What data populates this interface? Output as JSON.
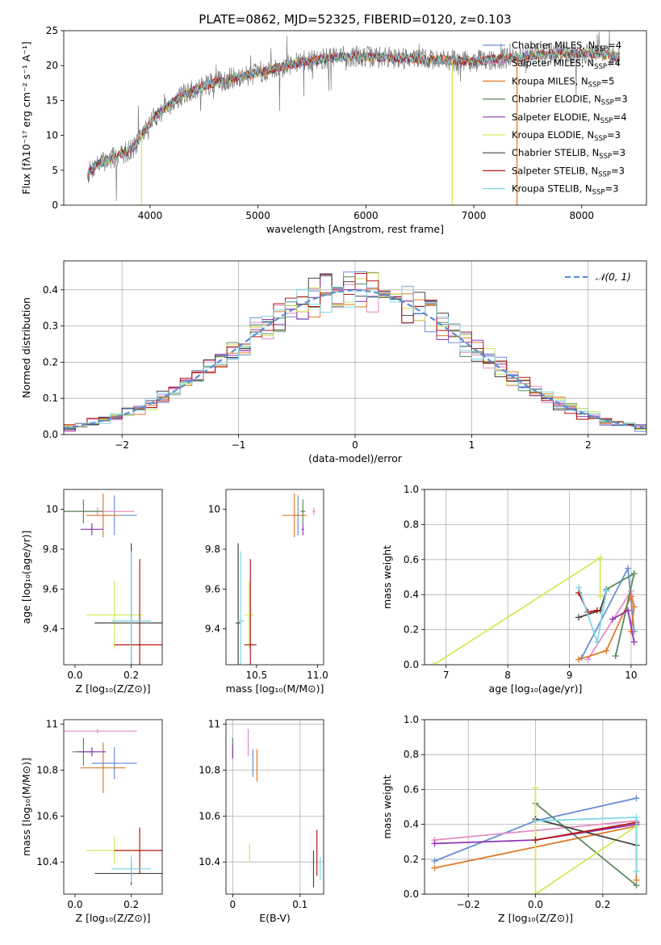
{
  "figure": {
    "title": "PLATE=0862, MJD=52325, FIBERID=0120, z=0.103",
    "colors": {
      "chabrier_miles": "#6a8fd6",
      "salpeter_miles": "#e38bc6",
      "kroupa_miles": "#e07b28",
      "chabrier_elodie": "#5a8a5e",
      "salpeter_elodie": "#8e35b3",
      "kroupa_elodie": "#d4e85a",
      "chabrier_stelib": "#444444",
      "salpeter_stelib": "#b51818",
      "kroupa_stelib": "#7fd6e6",
      "normal": "#5b8ed6",
      "grid": "#b0b0b0"
    }
  },
  "chart_data": [
    {
      "id": "spectrum",
      "type": "line",
      "xlabel": "wavelength [Angstrom, rest frame]",
      "ylabel": "Flux [fλ10⁻¹⁷ erg cm⁻² s⁻¹ A⁻¹]",
      "xlim": [
        3200,
        8600
      ],
      "ylim": [
        0,
        25
      ],
      "xticks": [
        4000,
        5000,
        6000,
        7000,
        8000
      ],
      "yticks": [
        0,
        5,
        10,
        15,
        20,
        25
      ],
      "grid": false,
      "legend_position": "top-right",
      "legend": [
        {
          "label": "Chabrier MILES, N",
          "sub": "SSP",
          "value": "=4",
          "color": "chabrier_miles"
        },
        {
          "label": "Salpeter MILES, N",
          "sub": "SSP",
          "value": "=4",
          "color": "salpeter_miles"
        },
        {
          "label": "Kroupa MILES, N",
          "sub": "SSP",
          "value": "=5",
          "color": "kroupa_miles"
        },
        {
          "label": "Chabrier ELODIE, N",
          "sub": "SSP",
          "value": "=3",
          "color": "chabrier_elodie"
        },
        {
          "label": "Salpeter ELODIE, N",
          "sub": "SSP",
          "value": "=4",
          "color": "salpeter_elodie"
        },
        {
          "label": "Kroupa ELODIE, N",
          "sub": "SSP",
          "value": "=3",
          "color": "kroupa_elodie"
        },
        {
          "label": "Chabrier STELIB, N",
          "sub": "SSP",
          "value": "=3",
          "color": "chabrier_stelib"
        },
        {
          "label": "Salpeter STELIB, N",
          "sub": "SSP",
          "value": "=3",
          "color": "salpeter_stelib"
        },
        {
          "label": "Kroupa STELIB, N",
          "sub": "SSP",
          "value": "=3",
          "color": "kroupa_stelib"
        }
      ],
      "continuum": {
        "x": [
          3420,
          3500,
          3700,
          3850,
          3950,
          4050,
          4300,
          4600,
          5000,
          5400,
          5800,
          6200,
          6600,
          7000,
          7400,
          7800,
          8100,
          8350
        ],
        "y": [
          4.5,
          5.8,
          7.0,
          8.3,
          10.8,
          12.8,
          15.8,
          17.6,
          19.0,
          20.5,
          21.3,
          21.2,
          20.9,
          20.6,
          21.2,
          21.8,
          21.7,
          21.3
        ]
      },
      "dropouts": [
        {
          "x": 3920,
          "y": 0
        },
        {
          "x": 6800,
          "y": 0
        },
        {
          "x": 7400,
          "y": 0
        }
      ]
    },
    {
      "id": "residuals",
      "type": "histogram",
      "xlabel": "(data-model)/error",
      "ylabel": "Normed distribution",
      "xlim": [
        -2.5,
        2.5
      ],
      "ylim": [
        0,
        0.48
      ],
      "xticks": [
        -2,
        -1,
        0,
        1,
        2
      ],
      "xtick_labels": [
        "−2",
        "−1",
        "0",
        "1",
        "2"
      ],
      "yticks": [
        0.0,
        0.1,
        0.2,
        0.3,
        0.4
      ],
      "grid": true,
      "legend_position": "top-right",
      "legend_label": "𝒩(0, 1)",
      "bin_width": 0.1,
      "bin_start": -2.5,
      "normal_curve": {
        "mean": 0,
        "sigma": 1
      }
    },
    {
      "id": "age_vs_Z",
      "type": "errorbar",
      "xlabel": "Z [log₁₀(Z/Z⊙)]",
      "ylabel": "age  [log₁₀(age/yr)]",
      "xlim": [
        -0.04,
        0.31
      ],
      "ylim": [
        9.22,
        10.1
      ],
      "xticks": [
        0.0,
        0.2
      ],
      "xtick_labels": [
        "0.0",
        "0.2"
      ],
      "yticks": [
        9.4,
        9.6,
        9.8,
        10.0
      ],
      "grid": false,
      "points": [
        {
          "series": "chabrier_miles",
          "x": 0.14,
          "y": 9.97,
          "xerr": 0.08,
          "yerr": 0.1
        },
        {
          "series": "salpeter_miles",
          "x": 0.08,
          "y": 9.99,
          "xerr": 0.13,
          "yerr": 0.02
        },
        {
          "series": "kroupa_miles",
          "x": 0.1,
          "y": 9.97,
          "xerr": 0.06,
          "yerr": 0.11
        },
        {
          "series": "chabrier_elodie",
          "x": 0.03,
          "y": 9.99,
          "xerr": 0.07,
          "yerr": 0.06
        },
        {
          "series": "salpeter_elodie",
          "x": 0.06,
          "y": 9.9,
          "xerr": 0.04,
          "yerr": 0.03
        },
        {
          "series": "kroupa_elodie",
          "x": 0.14,
          "y": 9.47,
          "xerr": 0.1,
          "yerr": 0.17
        },
        {
          "series": "chabrier_stelib",
          "x": 0.2,
          "y": 9.43,
          "xerr": 0.13,
          "yerr": 0.4
        },
        {
          "series": "salpeter_stelib",
          "x": 0.23,
          "y": 9.32,
          "xerr": 0.09,
          "yerr": 0.43
        },
        {
          "series": "kroupa_stelib",
          "x": 0.2,
          "y": 9.44,
          "xerr": 0.07,
          "yerr": 0.35
        }
      ]
    },
    {
      "id": "age_vs_mass",
      "type": "errorbar",
      "xlabel": "mass [log₁₀(M/M⊙)]",
      "ylabel": "",
      "xlim": [
        10.25,
        11.05
      ],
      "ylim": [
        9.22,
        10.1
      ],
      "xticks": [
        10.5,
        11.0
      ],
      "xtick_labels": [
        "10.5",
        "11.0"
      ],
      "yticks": [
        9.4,
        9.6,
        9.8,
        10.0
      ],
      "grid": false,
      "points": [
        {
          "series": "chabrier_miles",
          "x": 10.84,
          "y": 9.97,
          "xerr": 0.02,
          "yerr": 0.1
        },
        {
          "series": "salpeter_miles",
          "x": 10.97,
          "y": 9.99,
          "xerr": 0.01,
          "yerr": 0.02
        },
        {
          "series": "kroupa_miles",
          "x": 10.81,
          "y": 9.97,
          "xerr": 0.1,
          "yerr": 0.11
        },
        {
          "series": "chabrier_elodie",
          "x": 10.88,
          "y": 9.99,
          "xerr": 0.02,
          "yerr": 0.06
        },
        {
          "series": "salpeter_elodie",
          "x": 10.88,
          "y": 9.9,
          "xerr": 0.01,
          "yerr": 0.03
        },
        {
          "series": "kroupa_elodie",
          "x": 10.44,
          "y": 9.47,
          "xerr": 0.04,
          "yerr": 0.17
        },
        {
          "series": "chabrier_stelib",
          "x": 10.35,
          "y": 9.43,
          "xerr": 0.02,
          "yerr": 0.4
        },
        {
          "series": "salpeter_stelib",
          "x": 10.45,
          "y": 9.32,
          "xerr": 0.05,
          "yerr": 0.43
        },
        {
          "series": "kroupa_stelib",
          "x": 10.37,
          "y": 9.44,
          "xerr": 0.03,
          "yerr": 0.35
        }
      ]
    },
    {
      "id": "weight_vs_age",
      "type": "line",
      "xlabel": "age  [log₁₀(age/yr)]",
      "ylabel": "mass weight",
      "xlim": [
        6.65,
        10.25
      ],
      "ylim": [
        0,
        1
      ],
      "xticks": [
        7,
        8,
        9,
        10
      ],
      "xtick_labels": [
        "7",
        "8",
        "9",
        "10"
      ],
      "yticks": [
        0.0,
        0.2,
        0.4,
        0.6,
        0.8,
        1.0
      ],
      "grid": true,
      "series": [
        {
          "name": "chabrier_miles",
          "x": [
            9.2,
            9.95,
            10.05
          ],
          "y": [
            0.04,
            0.55,
            0.19
          ]
        },
        {
          "name": "salpeter_miles",
          "x": [
            9.3,
            10.0,
            10.05
          ],
          "y": [
            0.03,
            0.42,
            0.33
          ]
        },
        {
          "name": "kroupa_miles",
          "x": [
            9.15,
            9.6,
            10.0,
            10.05,
            10.0
          ],
          "y": [
            0.03,
            0.08,
            0.39,
            0.33,
            0.19
          ]
        },
        {
          "name": "chabrier_elodie",
          "x": [
            9.75,
            10.05,
            9.6
          ],
          "y": [
            0.05,
            0.52,
            0.43
          ]
        },
        {
          "name": "salpeter_elodie",
          "x": [
            9.7,
            9.95,
            10.05
          ],
          "y": [
            0.26,
            0.31,
            0.13
          ]
        },
        {
          "name": "kroupa_elodie",
          "x": [
            6.8,
            9.5,
            9.5
          ],
          "y": [
            0.0,
            0.61,
            0.39
          ]
        },
        {
          "name": "chabrier_stelib",
          "x": [
            9.15,
            9.5,
            9.6
          ],
          "y": [
            0.27,
            0.31,
            0.42
          ]
        },
        {
          "name": "salpeter_stelib",
          "x": [
            9.15,
            9.3,
            9.45
          ],
          "y": [
            0.41,
            0.3,
            0.31
          ]
        },
        {
          "name": "kroupa_stelib",
          "x": [
            9.15,
            9.45,
            9.6
          ],
          "y": [
            0.44,
            0.13,
            0.42
          ]
        }
      ]
    },
    {
      "id": "mass_vs_Z",
      "type": "errorbar",
      "xlabel": "Z [log₁₀(Z/Z⊙)]",
      "ylabel": "mass [log₁₀(M/M⊙)]",
      "xlim": [
        -0.04,
        0.31
      ],
      "ylim": [
        10.26,
        11.02
      ],
      "xticks": [
        0.0,
        0.2
      ],
      "xtick_labels": [
        "0.0",
        "0.2"
      ],
      "yticks": [
        10.4,
        10.6,
        10.8,
        11.0
      ],
      "grid": false,
      "points": [
        {
          "series": "chabrier_miles",
          "x": 0.14,
          "y": 10.83,
          "xerr": 0.08,
          "yerr": 0.07
        },
        {
          "series": "salpeter_miles",
          "x": 0.08,
          "y": 10.97,
          "xerr": 0.14,
          "yerr": 0.01
        },
        {
          "series": "kroupa_miles",
          "x": 0.1,
          "y": 10.81,
          "xerr": 0.08,
          "yerr": 0.11
        },
        {
          "series": "chabrier_elodie",
          "x": 0.03,
          "y": 10.88,
          "xerr": 0.04,
          "yerr": 0.06
        },
        {
          "series": "salpeter_elodie",
          "x": 0.06,
          "y": 10.88,
          "xerr": 0.05,
          "yerr": 0.02
        },
        {
          "series": "kroupa_elodie",
          "x": 0.14,
          "y": 10.45,
          "xerr": 0.1,
          "yerr": 0.06
        },
        {
          "series": "chabrier_stelib",
          "x": 0.2,
          "y": 10.35,
          "xerr": 0.13,
          "yerr": 0.05
        },
        {
          "series": "salpeter_stelib",
          "x": 0.23,
          "y": 10.45,
          "xerr": 0.09,
          "yerr": 0.1
        },
        {
          "series": "kroupa_stelib",
          "x": 0.2,
          "y": 10.37,
          "xerr": 0.07,
          "yerr": 0.06
        }
      ]
    },
    {
      "id": "mass_vs_ebv",
      "type": "errorbar",
      "xlabel": "E(B-V)",
      "ylabel": "",
      "xlim": [
        -0.01,
        0.135
      ],
      "ylim": [
        10.26,
        11.02
      ],
      "xticks": [
        0.0,
        0.1
      ],
      "xtick_labels": [
        "0",
        "0.1"
      ],
      "yticks": [
        10.4,
        10.6,
        10.8,
        11.0
      ],
      "grid": true,
      "points": [
        {
          "series": "chabrier_miles",
          "x": 0.03,
          "y": 10.83,
          "xerr": 0,
          "yerr": 0.06
        },
        {
          "series": "salpeter_miles",
          "x": 0.023,
          "y": 10.92,
          "xerr": 0,
          "yerr": 0.06
        },
        {
          "series": "kroupa_miles",
          "x": 0.036,
          "y": 10.82,
          "xerr": 0,
          "yerr": 0.07
        },
        {
          "series": "chabrier_elodie",
          "x": 0.0,
          "y": 10.9,
          "xerr": 0,
          "yerr": 0.04
        },
        {
          "series": "salpeter_elodie",
          "x": 0.0,
          "y": 10.88,
          "xerr": 0,
          "yerr": 0.03
        },
        {
          "series": "kroupa_elodie",
          "x": 0.025,
          "y": 10.44,
          "xerr": 0,
          "yerr": 0.04
        },
        {
          "series": "chabrier_stelib",
          "x": 0.12,
          "y": 10.37,
          "xerr": 0,
          "yerr": 0.08
        },
        {
          "series": "salpeter_stelib",
          "x": 0.125,
          "y": 10.44,
          "xerr": 0,
          "yerr": 0.1
        },
        {
          "series": "kroupa_stelib",
          "x": 0.13,
          "y": 10.37,
          "xerr": 0,
          "yerr": 0.05
        }
      ]
    },
    {
      "id": "weight_vs_Z",
      "type": "line",
      "xlabel": "Z [log₁₀(Z/Z⊙)]",
      "ylabel": "mass weight",
      "xlim": [
        -0.33,
        0.33
      ],
      "ylim": [
        0,
        1
      ],
      "xticks": [
        -0.2,
        0.0,
        0.2
      ],
      "xtick_labels": [
        "−0.2",
        "0.0",
        "0.2"
      ],
      "yticks": [
        0.0,
        0.2,
        0.4,
        0.6,
        0.8,
        1.0
      ],
      "grid": true,
      "series": [
        {
          "name": "chabrier_miles",
          "x": [
            -0.3,
            0.0,
            0.3
          ],
          "y": [
            0.19,
            0.42,
            0.55
          ]
        },
        {
          "name": "salpeter_miles",
          "x": [
            -0.3,
            0.3
          ],
          "y": [
            0.31,
            0.42
          ]
        },
        {
          "name": "kroupa_miles",
          "x": [
            -0.3,
            0.3,
            0.3
          ],
          "y": [
            0.15,
            0.39,
            0.08
          ]
        },
        {
          "name": "chabrier_elodie",
          "x": [
            0.0,
            0.3
          ],
          "y": [
            0.52,
            0.05
          ]
        },
        {
          "name": "salpeter_elodie",
          "x": [
            -0.3,
            0.0,
            0.3
          ],
          "y": [
            0.29,
            0.31,
            0.4
          ]
        },
        {
          "name": "kroupa_elodie",
          "x": [
            0.0,
            0.0,
            0.3
          ],
          "y": [
            0.61,
            0.0,
            0.39
          ]
        },
        {
          "name": "chabrier_stelib",
          "x": [
            0.0,
            0.3
          ],
          "y": [
            0.43,
            0.28
          ]
        },
        {
          "name": "salpeter_stelib",
          "x": [
            0.0,
            0.3
          ],
          "y": [
            0.31,
            0.41
          ]
        },
        {
          "name": "kroupa_stelib",
          "x": [
            0.0,
            0.3,
            0.3
          ],
          "y": [
            0.42,
            0.44,
            0.13
          ]
        }
      ]
    }
  ]
}
